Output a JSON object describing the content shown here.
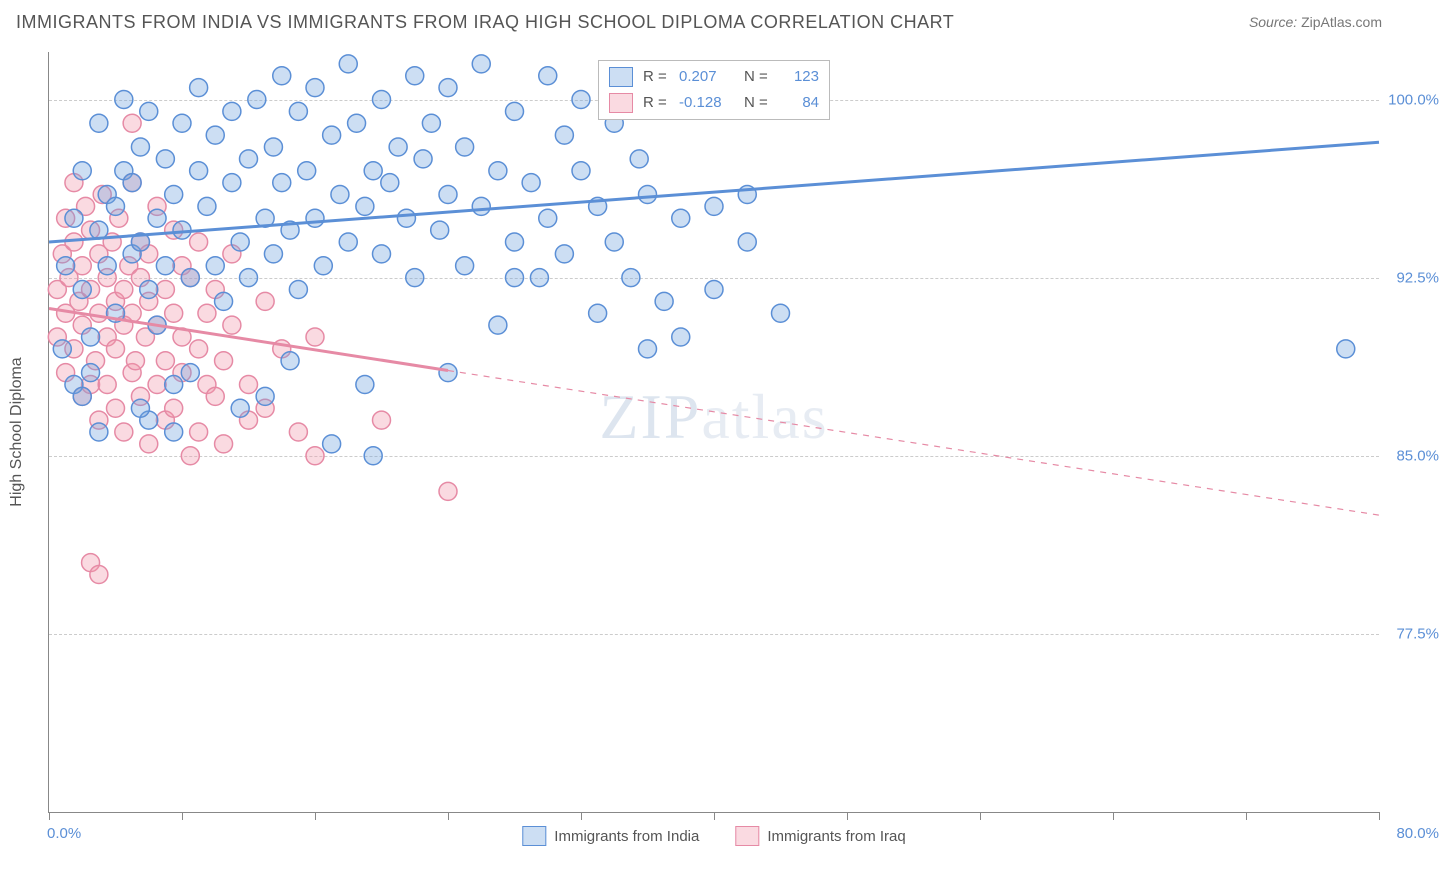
{
  "title": "IMMIGRANTS FROM INDIA VS IMMIGRANTS FROM IRAQ HIGH SCHOOL DIPLOMA CORRELATION CHART",
  "source_label": "Source:",
  "source_value": "ZipAtlas.com",
  "watermark": "ZIPatlas",
  "chart": {
    "type": "scatter",
    "y_axis_title": "High School Diploma",
    "xlim": [
      0.0,
      80.0
    ],
    "ylim": [
      70.0,
      102.0
    ],
    "x_tick_positions": [
      0,
      8,
      16,
      24,
      32,
      40,
      48,
      56,
      64,
      72,
      80
    ],
    "x_label_min": "0.0%",
    "x_label_max": "80.0%",
    "y_gridlines": [
      77.5,
      85.0,
      92.5,
      100.0
    ],
    "y_grid_labels": [
      "77.5%",
      "85.0%",
      "92.5%",
      "100.0%"
    ],
    "grid_color": "#cccccc",
    "background_color": "#ffffff",
    "axis_color": "#888888",
    "tick_label_color": "#5b8fd6",
    "series": [
      {
        "name": "Immigrants from India",
        "color_fill": "rgba(110,160,220,0.35)",
        "color_stroke": "#5b8fd6",
        "trend_solid_to_x": 80.0,
        "trend": {
          "y_at_x0": 94.0,
          "y_at_xmax": 98.2
        },
        "r_value": "0.207",
        "n_value": "123",
        "marker_radius": 9,
        "points": [
          [
            1.0,
            93.0
          ],
          [
            1.5,
            95.0
          ],
          [
            2.0,
            92.0
          ],
          [
            2.0,
            97.0
          ],
          [
            2.5,
            90.0
          ],
          [
            2.5,
            88.5
          ],
          [
            3.0,
            94.5
          ],
          [
            3.0,
            99.0
          ],
          [
            3.5,
            96.0
          ],
          [
            3.5,
            93.0
          ],
          [
            4.0,
            95.5
          ],
          [
            4.0,
            91.0
          ],
          [
            4.5,
            97.0
          ],
          [
            4.5,
            100.0
          ],
          [
            5.0,
            93.5
          ],
          [
            5.0,
            96.5
          ],
          [
            5.5,
            98.0
          ],
          [
            5.5,
            94.0
          ],
          [
            6.0,
            92.0
          ],
          [
            6.0,
            99.5
          ],
          [
            6.5,
            95.0
          ],
          [
            6.5,
            90.5
          ],
          [
            7.0,
            97.5
          ],
          [
            7.0,
            93.0
          ],
          [
            7.5,
            96.0
          ],
          [
            7.5,
            88.0
          ],
          [
            8.0,
            99.0
          ],
          [
            8.0,
            94.5
          ],
          [
            8.5,
            92.5
          ],
          [
            9.0,
            97.0
          ],
          [
            9.0,
            100.5
          ],
          [
            9.5,
            95.5
          ],
          [
            10.0,
            93.0
          ],
          [
            10.0,
            98.5
          ],
          [
            10.5,
            91.5
          ],
          [
            11.0,
            96.5
          ],
          [
            11.0,
            99.5
          ],
          [
            11.5,
            94.0
          ],
          [
            12.0,
            97.5
          ],
          [
            12.0,
            92.5
          ],
          [
            12.5,
            100.0
          ],
          [
            13.0,
            95.0
          ],
          [
            13.5,
            98.0
          ],
          [
            13.5,
            93.5
          ],
          [
            14.0,
            96.5
          ],
          [
            14.0,
            101.0
          ],
          [
            14.5,
            94.5
          ],
          [
            15.0,
            99.5
          ],
          [
            15.0,
            92.0
          ],
          [
            15.5,
            97.0
          ],
          [
            16.0,
            95.0
          ],
          [
            16.0,
            100.5
          ],
          [
            16.5,
            93.0
          ],
          [
            17.0,
            98.5
          ],
          [
            17.5,
            96.0
          ],
          [
            18.0,
            101.5
          ],
          [
            18.0,
            94.0
          ],
          [
            18.5,
            99.0
          ],
          [
            19.0,
            95.5
          ],
          [
            19.0,
            88.0
          ],
          [
            19.5,
            97.0
          ],
          [
            20.0,
            100.0
          ],
          [
            20.0,
            93.5
          ],
          [
            20.5,
            96.5
          ],
          [
            21.0,
            98.0
          ],
          [
            21.5,
            95.0
          ],
          [
            22.0,
            101.0
          ],
          [
            22.0,
            92.5
          ],
          [
            22.5,
            97.5
          ],
          [
            23.0,
            99.0
          ],
          [
            23.5,
            94.5
          ],
          [
            24.0,
            96.0
          ],
          [
            24.0,
            100.5
          ],
          [
            25.0,
            93.0
          ],
          [
            25.0,
            98.0
          ],
          [
            26.0,
            95.5
          ],
          [
            26.0,
            101.5
          ],
          [
            27.0,
            90.5
          ],
          [
            27.0,
            97.0
          ],
          [
            28.0,
            94.0
          ],
          [
            28.0,
            99.5
          ],
          [
            29.0,
            96.5
          ],
          [
            29.5,
            92.5
          ],
          [
            30.0,
            101.0
          ],
          [
            30.0,
            95.0
          ],
          [
            31.0,
            98.5
          ],
          [
            31.0,
            93.5
          ],
          [
            32.0,
            97.0
          ],
          [
            32.0,
            100.0
          ],
          [
            33.0,
            91.0
          ],
          [
            33.0,
            95.5
          ],
          [
            34.0,
            99.0
          ],
          [
            34.0,
            94.0
          ],
          [
            35.0,
            92.5
          ],
          [
            35.5,
            97.5
          ],
          [
            36.0,
            96.0
          ],
          [
            37.0,
            91.5
          ],
          [
            38.0,
            95.0
          ],
          [
            38.0,
            90.0
          ],
          [
            40.0,
            92.0
          ],
          [
            40.0,
            95.5
          ],
          [
            42.0,
            94.0
          ],
          [
            44.0,
            91.0
          ],
          [
            17.0,
            85.5
          ],
          [
            19.5,
            85.0
          ],
          [
            11.5,
            87.0
          ],
          [
            7.5,
            86.0
          ],
          [
            13.0,
            87.5
          ],
          [
            6.0,
            86.5
          ],
          [
            24.0,
            88.5
          ],
          [
            1.5,
            88.0
          ],
          [
            0.8,
            89.5
          ],
          [
            36.0,
            89.5
          ],
          [
            42.0,
            96.0
          ],
          [
            8.5,
            88.5
          ],
          [
            5.5,
            87.0
          ],
          [
            3.0,
            86.0
          ],
          [
            2.0,
            87.5
          ],
          [
            14.5,
            89.0
          ],
          [
            28.0,
            92.5
          ],
          [
            78.0,
            89.5
          ]
        ]
      },
      {
        "name": "Immigrants from Iraq",
        "color_fill": "rgba(240,150,170,0.35)",
        "color_stroke": "#e68aa5",
        "trend_solid_to_x": 24.0,
        "trend": {
          "y_at_x0": 91.2,
          "y_at_xmax": 82.5
        },
        "r_value": "-0.128",
        "n_value": "84",
        "marker_radius": 9,
        "points": [
          [
            0.5,
            92.0
          ],
          [
            0.5,
            90.0
          ],
          [
            0.8,
            93.5
          ],
          [
            1.0,
            91.0
          ],
          [
            1.0,
            95.0
          ],
          [
            1.0,
            88.5
          ],
          [
            1.2,
            92.5
          ],
          [
            1.5,
            94.0
          ],
          [
            1.5,
            89.5
          ],
          [
            1.5,
            96.5
          ],
          [
            1.8,
            91.5
          ],
          [
            2.0,
            93.0
          ],
          [
            2.0,
            87.5
          ],
          [
            2.0,
            90.5
          ],
          [
            2.2,
            95.5
          ],
          [
            2.5,
            92.0
          ],
          [
            2.5,
            88.0
          ],
          [
            2.5,
            94.5
          ],
          [
            2.8,
            89.0
          ],
          [
            3.0,
            91.0
          ],
          [
            3.0,
            93.5
          ],
          [
            3.0,
            86.5
          ],
          [
            3.2,
            96.0
          ],
          [
            3.5,
            90.0
          ],
          [
            3.5,
            92.5
          ],
          [
            3.5,
            88.0
          ],
          [
            3.8,
            94.0
          ],
          [
            4.0,
            91.5
          ],
          [
            4.0,
            87.0
          ],
          [
            4.0,
            89.5
          ],
          [
            4.2,
            95.0
          ],
          [
            4.5,
            92.0
          ],
          [
            4.5,
            86.0
          ],
          [
            4.5,
            90.5
          ],
          [
            4.8,
            93.0
          ],
          [
            5.0,
            88.5
          ],
          [
            5.0,
            91.0
          ],
          [
            5.0,
            96.5
          ],
          [
            5.2,
            89.0
          ],
          [
            5.5,
            92.5
          ],
          [
            5.5,
            87.5
          ],
          [
            5.5,
            94.0
          ],
          [
            5.8,
            90.0
          ],
          [
            6.0,
            91.5
          ],
          [
            6.0,
            85.5
          ],
          [
            6.0,
            93.5
          ],
          [
            6.5,
            88.0
          ],
          [
            6.5,
            95.5
          ],
          [
            6.5,
            90.5
          ],
          [
            7.0,
            92.0
          ],
          [
            7.0,
            86.5
          ],
          [
            7.0,
            89.0
          ],
          [
            7.5,
            94.5
          ],
          [
            7.5,
            91.0
          ],
          [
            7.5,
            87.0
          ],
          [
            8.0,
            93.0
          ],
          [
            8.0,
            88.5
          ],
          [
            8.0,
            90.0
          ],
          [
            8.5,
            85.0
          ],
          [
            8.5,
            92.5
          ],
          [
            9.0,
            89.5
          ],
          [
            9.0,
            94.0
          ],
          [
            9.0,
            86.0
          ],
          [
            9.5,
            91.0
          ],
          [
            9.5,
            88.0
          ],
          [
            10.0,
            92.0
          ],
          [
            10.0,
            87.5
          ],
          [
            10.5,
            89.0
          ],
          [
            10.5,
            85.5
          ],
          [
            11.0,
            90.5
          ],
          [
            11.0,
            93.5
          ],
          [
            12.0,
            88.0
          ],
          [
            12.0,
            86.5
          ],
          [
            13.0,
            91.5
          ],
          [
            13.0,
            87.0
          ],
          [
            14.0,
            89.5
          ],
          [
            15.0,
            86.0
          ],
          [
            16.0,
            90.0
          ],
          [
            16.0,
            85.0
          ],
          [
            20.0,
            86.5
          ],
          [
            24.0,
            83.5
          ],
          [
            2.5,
            80.5
          ],
          [
            3.0,
            80.0
          ],
          [
            5.0,
            99.0
          ]
        ]
      }
    ],
    "legend_bottom": [
      {
        "swatch_fill": "rgba(110,160,220,0.35)",
        "swatch_border": "#5b8fd6",
        "label": "Immigrants from India"
      },
      {
        "swatch_fill": "rgba(240,150,170,0.35)",
        "swatch_border": "#e68aa5",
        "label": "Immigrants from Iraq"
      }
    ]
  }
}
